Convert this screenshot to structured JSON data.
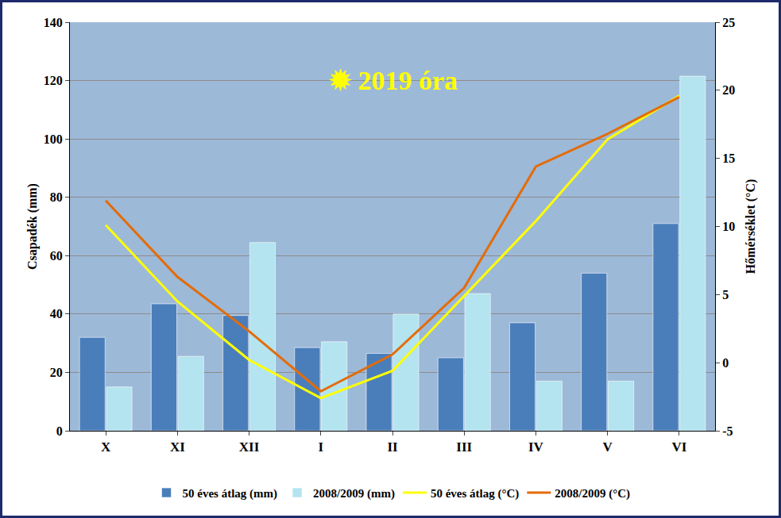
{
  "chart_data": {
    "type": "bar",
    "categories": [
      "X",
      "XI",
      "XII",
      "I",
      "II",
      "III",
      "IV",
      "V",
      "VI"
    ],
    "y_label": "Csapadék (mm)",
    "y2_label": "Hőmérséklet (°C)",
    "ylim": [
      0,
      140
    ],
    "yticks": [
      0,
      20,
      40,
      60,
      80,
      100,
      120,
      140
    ],
    "y2lim": [
      -5,
      25
    ],
    "y2ticks": [
      -5,
      0,
      5,
      10,
      15,
      20,
      25
    ],
    "grid": true,
    "legend": "bottom",
    "annotations": [
      "✹ 2019 óra"
    ],
    "series": [
      {
        "name": "50 éves átlag (mm)",
        "type": "bar",
        "color": "#4a7ebb",
        "values": [
          32,
          43.5,
          39.5,
          28.5,
          26.5,
          25,
          37,
          54,
          71
        ]
      },
      {
        "name": "2008/2009 (mm)",
        "type": "bar",
        "color": "#b3e4ef",
        "values": [
          15,
          25.5,
          64.5,
          30.5,
          40,
          47,
          17,
          17,
          121.5
        ]
      },
      {
        "name": "50 éves átlag (°C)",
        "type": "line",
        "axis": "y2",
        "color": "#ffff00",
        "values": [
          10.1,
          4.5,
          0.2,
          -2.6,
          -0.6,
          4.9,
          10.4,
          16.4,
          19.6
        ]
      },
      {
        "name": "2008/2009 (°C)",
        "type": "line",
        "axis": "y2",
        "color": "#e36c09",
        "values": [
          11.9,
          6.3,
          2.3,
          -2.1,
          0.6,
          5.5,
          14.4,
          16.8,
          19.5
        ]
      }
    ]
  }
}
